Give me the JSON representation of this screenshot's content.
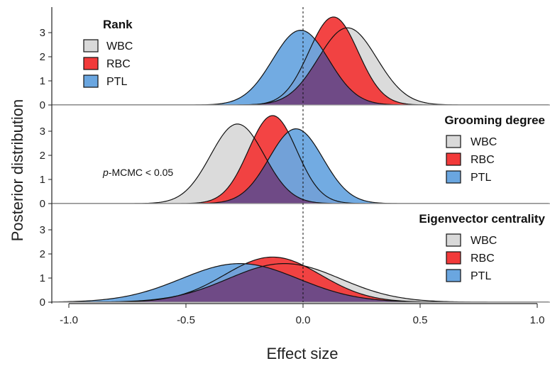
{
  "chart_data": {
    "type": "area",
    "xlabel": "Effect size",
    "ylabel": "Posterior distribution",
    "xlim": [
      -1.1,
      1.05
    ],
    "xticks": [
      "-1.0",
      "-0.5",
      "0.0",
      "0.5",
      "1.0"
    ],
    "xtick_values": [
      -1.0,
      -0.5,
      0.0,
      0.5,
      1.0
    ],
    "reference_line_x": 0.0,
    "colors": {
      "WBC": "#d9d9d9",
      "RBC": "#f23a3a",
      "PTL": "#6aa6e0",
      "overlap": "#6f4a86"
    },
    "panels": [
      {
        "title": "Rank",
        "ylim": [
          0,
          4
        ],
        "yticks": [
          "0",
          "1",
          "2",
          "3"
        ],
        "legend_position": "top-left",
        "annotation": "",
        "series": [
          {
            "name": "WBC",
            "mean": 0.19,
            "sd": 0.125,
            "peak": 3.2
          },
          {
            "name": "RBC",
            "mean": 0.13,
            "sd": 0.105,
            "peak": 3.65
          },
          {
            "name": "PTL",
            "mean": -0.01,
            "sd": 0.12,
            "peak": 3.1
          }
        ]
      },
      {
        "title": "Grooming degree",
        "ylim": [
          0,
          4
        ],
        "yticks": [
          "0",
          "1",
          "2",
          "3"
        ],
        "legend_position": "right",
        "annotation": "p-MCMC < 0.05",
        "series": [
          {
            "name": "WBC",
            "mean": -0.28,
            "sd": 0.115,
            "peak": 3.3
          },
          {
            "name": "RBC",
            "mean": -0.13,
            "sd": 0.103,
            "peak": 3.65
          },
          {
            "name": "PTL",
            "mean": -0.03,
            "sd": 0.115,
            "peak": 3.1
          }
        ]
      },
      {
        "title": "Eigenvector centrality",
        "ylim": [
          0,
          4
        ],
        "yticks": [
          "0",
          "1",
          "2",
          "3"
        ],
        "legend_position": "right",
        "annotation": "",
        "series": [
          {
            "name": "WBC",
            "mean": -0.08,
            "sd": 0.24,
            "peak": 1.6
          },
          {
            "name": "RBC",
            "mean": -0.13,
            "sd": 0.205,
            "peak": 1.87
          },
          {
            "name": "PTL",
            "mean": -0.27,
            "sd": 0.25,
            "peak": 1.6
          }
        ]
      }
    ]
  }
}
